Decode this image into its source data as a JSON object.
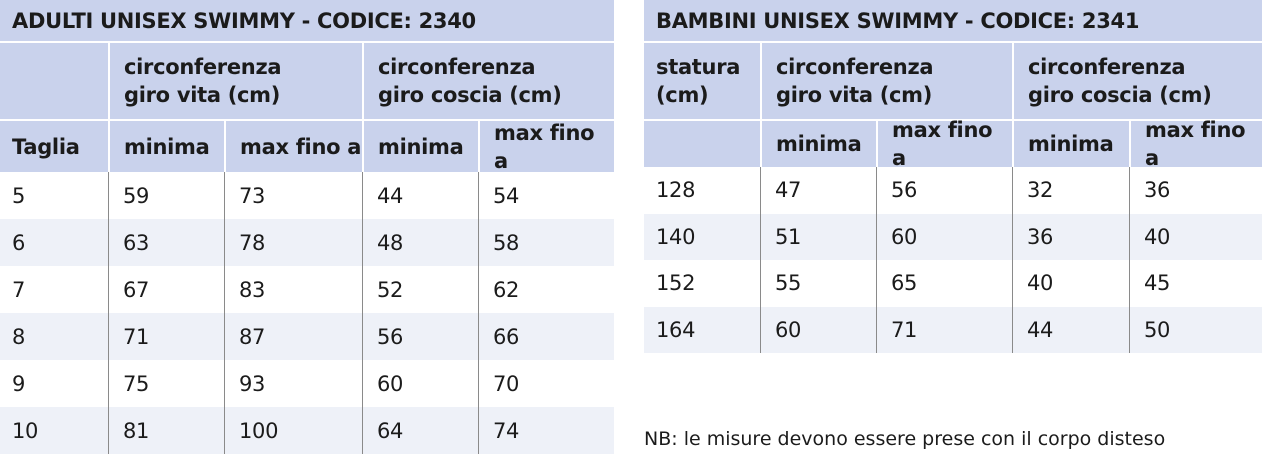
{
  "left": {
    "title": "ADULTI UNISEX SWIMMY - CODICE: 2340",
    "header_groups": [
      null,
      "circonferenza\ngiro vita (cm)",
      "circonferenza\ngiro coscia (cm)"
    ],
    "columns": [
      "Taglia",
      "minima",
      "max fino a",
      "minima",
      "max fino a"
    ],
    "rows": [
      [
        "5",
        "59",
        "73",
        "44",
        "54"
      ],
      [
        "6",
        "63",
        "78",
        "48",
        "58"
      ],
      [
        "7",
        "67",
        "83",
        "52",
        "62"
      ],
      [
        "8",
        "71",
        "87",
        "56",
        "66"
      ],
      [
        "9",
        "75",
        "93",
        "60",
        "70"
      ],
      [
        "10",
        "81",
        "100",
        "64",
        "74"
      ]
    ]
  },
  "right": {
    "title": "BAMBINI UNISEX SWIMMY - CODICE: 2341",
    "header_groups": [
      "statura\n(cm)",
      "circonferenza\ngiro vita (cm)",
      "circonferenza\ngiro coscia (cm)"
    ],
    "columns": [
      null,
      "minima",
      "max fino a",
      "minima",
      "max fino a"
    ],
    "rows": [
      [
        "128",
        "47",
        "56",
        "32",
        "36"
      ],
      [
        "140",
        "51",
        "60",
        "36",
        "40"
      ],
      [
        "152",
        "55",
        "65",
        "40",
        "45"
      ],
      [
        "164",
        "60",
        "71",
        "44",
        "50"
      ]
    ]
  },
  "note": "NB: le misure devono essere prese con il corpo disteso"
}
